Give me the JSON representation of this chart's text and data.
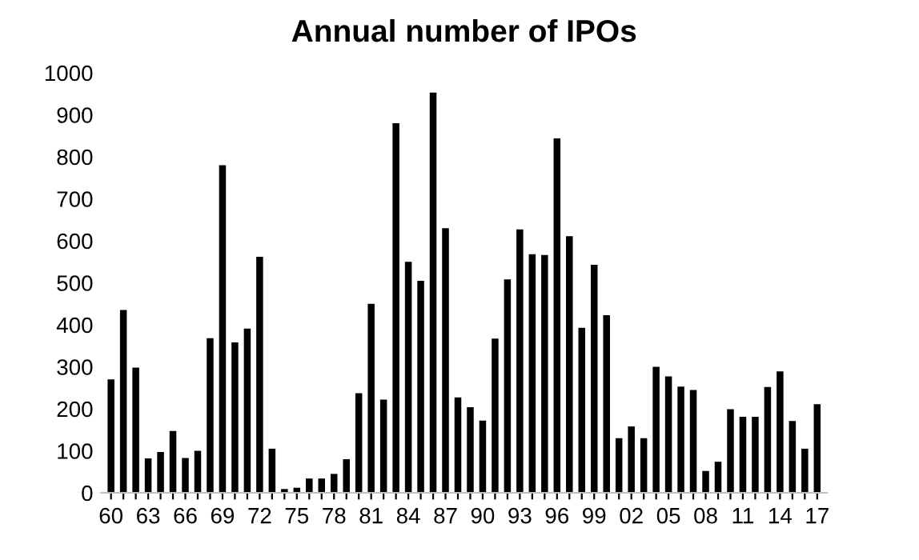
{
  "chart_data": {
    "type": "bar",
    "title": "Annual number of IPOs",
    "categories": [
      "60",
      null,
      null,
      "63",
      null,
      null,
      "66",
      null,
      null,
      "69",
      null,
      null,
      "72",
      null,
      null,
      "75",
      null,
      null,
      "78",
      null,
      null,
      "81",
      null,
      null,
      "84",
      null,
      null,
      "87",
      null,
      null,
      "90",
      null,
      null,
      "93",
      null,
      null,
      "96",
      null,
      null,
      "99",
      null,
      null,
      "02",
      null,
      null,
      "05",
      null,
      null,
      "08",
      null,
      null,
      "11",
      null,
      null,
      "14",
      null,
      null,
      "17"
    ],
    "values": [
      270,
      435,
      298,
      82,
      97,
      147,
      83,
      100,
      368,
      780,
      358,
      391,
      562,
      105,
      9,
      12,
      34,
      34,
      45,
      80,
      237,
      450,
      222,
      880,
      550,
      505,
      953,
      630,
      227,
      204,
      172,
      367,
      508,
      627,
      568,
      566,
      844,
      611,
      393,
      543,
      423,
      130,
      158,
      130,
      300,
      277,
      253,
      245,
      52,
      74,
      199,
      181,
      181,
      252,
      289,
      171,
      105,
      211
    ],
    "color": "#000000",
    "ylim": [
      0,
      1000
    ],
    "yticks": [
      0,
      100,
      200,
      300,
      400,
      500,
      600,
      700,
      800,
      900,
      1000
    ],
    "grid": false,
    "legend": false
  }
}
